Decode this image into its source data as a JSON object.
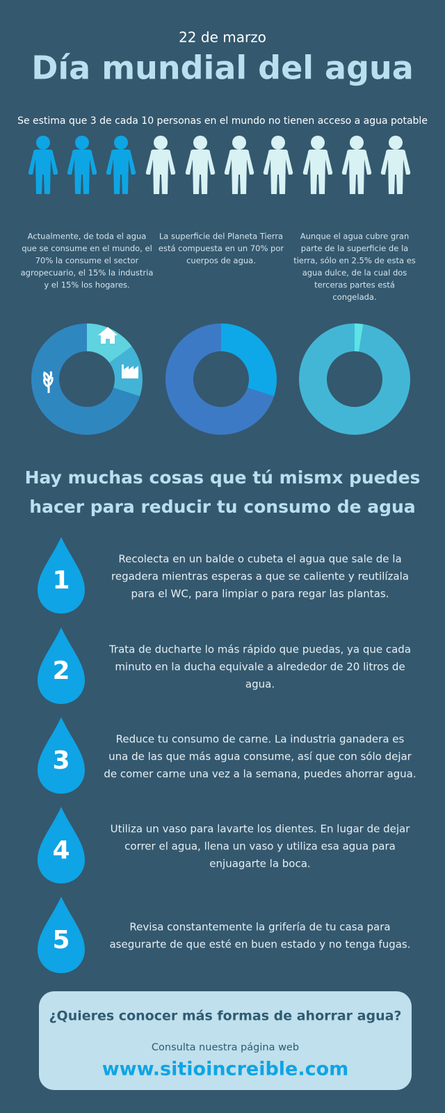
{
  "header": {
    "date": "22 de marzo",
    "title": "Día mundial del agua"
  },
  "intro": "Se estima que 3 de cada 10 personas en el mundo no tienen acceso a agua potable",
  "facts": [
    {
      "lines": [
        "Actualmente, de toda el agua",
        "que se consume en el mundo, el",
        "70% la consume el sector",
        "agropecuario, el 15% la industria",
        "y el 15% los hogares."
      ],
      "donut": {
        "values": [
          15,
          15,
          70
        ],
        "colors": [
          "#5fd3df",
          "#43b4d6",
          "#2f87c0"
        ]
      }
    },
    {
      "lines": [
        "La superficie del Planeta Tierra",
        "está compuesta en un 70% por",
        "cuerpos de agua."
      ],
      "donut": {
        "values": [
          30,
          70
        ],
        "colors": [
          "#0ea8e8",
          "#3d7ac6"
        ]
      }
    },
    {
      "lines": [
        "Aunque el agua cubre gran",
        "parte de la superficie de la",
        "tierra, sólo en 2.5% de esta es",
        "agua dulce, de la cual dos",
        "terceras partes está",
        "congelada."
      ],
      "donut": {
        "values": [
          2.5,
          97.5
        ],
        "colors": [
          "#5de3e6",
          "#43b6d6"
        ]
      }
    }
  ],
  "tips_heading": [
    "Hay muchas cosas que tú mismx puedes",
    "hacer para reducir tu consumo de agua"
  ],
  "tips": [
    {
      "number": "1",
      "lines": [
        "Recolecta en un balde o cubeta el agua que sale de la",
        "regadera mientras esperas a que se caliente y reutilízala",
        "para el WC, para limpiar o para regar las plantas."
      ]
    },
    {
      "number": "2",
      "lines": [
        "Trata de ducharte lo más rápido que puedas, ya que cada",
        "minuto en la ducha equivale a alrededor de 20 litros de",
        "agua."
      ]
    },
    {
      "number": "3",
      "lines": [
        "Reduce tu consumo de carne. La industria ganadera es",
        "una de las que más agua consume, así que con sólo dejar",
        "de comer carne una vez a la semana, puedes ahorrar agua."
      ]
    },
    {
      "number": "4",
      "lines": [
        "Utiliza un vaso para lavarte los dientes. En lugar de dejar",
        "correr el agua, llena un vaso y utiliza esa agua para",
        "enjuagarte la boca."
      ]
    },
    {
      "number": "5",
      "lines": [
        "Revisa constantemente la grifería de tu casa para",
        "asegurarte de que esté en buen estado y no tenga fugas."
      ]
    }
  ],
  "footer": {
    "question": "¿Quieres conocer más formas de ahorrar agua?",
    "prompt": "Consulta nuestra página web",
    "url": "www.sitioincreible.com"
  }
}
